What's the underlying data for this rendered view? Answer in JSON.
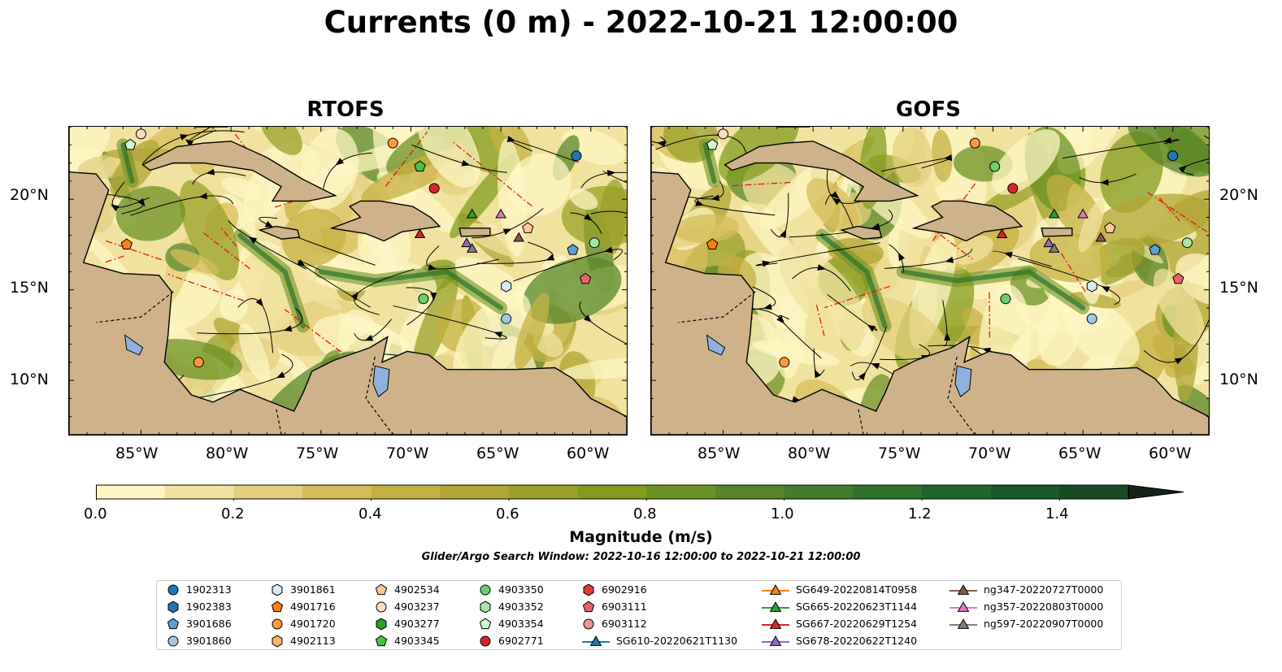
{
  "title": "Currents (0 m) - 2022-10-21 12:00:00",
  "panels": [
    {
      "title": "RTOFS"
    },
    {
      "title": "GOFS"
    }
  ],
  "axes": {
    "lon_ticks": [
      "85°W",
      "80°W",
      "75°W",
      "70°W",
      "65°W",
      "60°W"
    ],
    "lat_ticks": [
      "20°N",
      "15°N",
      "10°N"
    ]
  },
  "colorbar": {
    "label": "Magnitude (m/s)",
    "ticks": [
      "0.0",
      "0.2",
      "0.4",
      "0.6",
      "0.8",
      "1.0",
      "1.2",
      "1.4"
    ],
    "range": [
      0,
      1.5
    ],
    "extend": "max",
    "colors": [
      "#fdf6c3",
      "#f1e2a0",
      "#e4cf7d",
      "#d7bd5b",
      "#c5b043",
      "#b1a636",
      "#9aa02a",
      "#839c1f",
      "#6c9224",
      "#588729",
      "#427d2b",
      "#2e722c",
      "#1f662d",
      "#19592a",
      "#184a25",
      "#193b21",
      "#192e1d",
      "#172117"
    ]
  },
  "search_window": "Glider/Argo Search Window: 2022-10-16 12:00:00 to 2022-10-21 12:00:00",
  "legend": {
    "columns": [
      [
        {
          "label": "1902313",
          "marker": "circle",
          "color": "#1f77b4"
        },
        {
          "label": "1902383",
          "marker": "hexagon",
          "color": "#1f77b4"
        },
        {
          "label": "3901686",
          "marker": "pentagon",
          "color": "#5aa0d8"
        },
        {
          "label": "3901860",
          "marker": "circle",
          "color": "#9ecae9"
        }
      ],
      [
        {
          "label": "3901861",
          "marker": "hexagon",
          "color": "#d6eaf8"
        },
        {
          "label": "4901716",
          "marker": "pentagon",
          "color": "#ff7f0e"
        },
        {
          "label": "4901720",
          "marker": "circle",
          "color": "#ff9a3c"
        },
        {
          "label": "4902113",
          "marker": "hexagon",
          "color": "#ffb36b"
        }
      ],
      [
        {
          "label": "4902534",
          "marker": "pentagon",
          "color": "#ffc896"
        },
        {
          "label": "4903237",
          "marker": "circle",
          "color": "#ffdcc0"
        },
        {
          "label": "4903277",
          "marker": "hexagon",
          "color": "#2ca02c"
        },
        {
          "label": "4903345",
          "marker": "pentagon",
          "color": "#4dbf4d"
        }
      ],
      [
        {
          "label": "4903350",
          "marker": "circle",
          "color": "#6ccf6c"
        },
        {
          "label": "4903352",
          "marker": "hexagon",
          "color": "#a5e6a5"
        },
        {
          "label": "4903354",
          "marker": "pentagon",
          "color": "#d3f5d3"
        },
        {
          "label": "6902771",
          "marker": "circle",
          "color": "#d62728"
        }
      ],
      [
        {
          "label": "6902916",
          "marker": "hexagon",
          "color": "#e0393a"
        },
        {
          "label": "6903111",
          "marker": "pentagon",
          "color": "#e8636a"
        },
        {
          "label": "6903112",
          "marker": "circle",
          "color": "#f09090"
        },
        {
          "label": "SG610-20220621T1130",
          "marker": "triangle-line",
          "color": "#1f77b4"
        }
      ],
      [
        {
          "label": "SG649-20220814T0958",
          "marker": "triangle-line",
          "color": "#ff7f0e"
        },
        {
          "label": "SG665-20220623T1144",
          "marker": "triangle-line",
          "color": "#2ca02c"
        },
        {
          "label": "SG667-20220629T1254",
          "marker": "triangle-line",
          "color": "#d62728"
        },
        {
          "label": "SG678-20220622T1240",
          "marker": "triangle-line",
          "color": "#9467bd"
        }
      ],
      [
        {
          "label": "ng347-20220727T0000",
          "marker": "triangle-line",
          "color": "#8c564b"
        },
        {
          "label": "ng357-20220803T0000",
          "marker": "triangle-line",
          "color": "#e377c2"
        },
        {
          "label": "ng597-20220907T0000",
          "marker": "triangle-line",
          "color": "#7f7f7f"
        }
      ]
    ]
  },
  "map_extent": {
    "lon": [
      -89,
      -58
    ],
    "lat": [
      7,
      24
    ]
  },
  "markers": {
    "rtofs": [
      {
        "lon": -85.0,
        "lat": 23.6,
        "marker": "circle",
        "color": "#ffdcc0"
      },
      {
        "lon": -85.6,
        "lat": 23.0,
        "marker": "pentagon",
        "color": "#d3f5d3"
      },
      {
        "lon": -71.0,
        "lat": 23.1,
        "marker": "circle",
        "color": "#ff9a3c"
      },
      {
        "lon": -69.5,
        "lat": 21.8,
        "marker": "pentagon",
        "color": "#4dbf4d"
      },
      {
        "lon": -68.7,
        "lat": 20.6,
        "marker": "circle",
        "color": "#d62728"
      },
      {
        "lon": -60.8,
        "lat": 22.4,
        "marker": "circle",
        "color": "#1f77b4"
      },
      {
        "lon": -85.8,
        "lat": 17.5,
        "marker": "pentagon",
        "color": "#ff7f0e"
      },
      {
        "lon": -81.8,
        "lat": 11.0,
        "marker": "circle",
        "color": "#ff9a3c"
      },
      {
        "lon": -69.3,
        "lat": 14.5,
        "marker": "circle",
        "color": "#6ccf6c"
      },
      {
        "lon": -64.7,
        "lat": 15.2,
        "marker": "hexagon",
        "color": "#d6eaf8"
      },
      {
        "lon": -64.7,
        "lat": 13.4,
        "marker": "circle",
        "color": "#9ecae9"
      },
      {
        "lon": -61.0,
        "lat": 17.2,
        "marker": "pentagon",
        "color": "#5aa0d8"
      },
      {
        "lon": -59.8,
        "lat": 17.6,
        "marker": "circle",
        "color": "#a5e6a5"
      },
      {
        "lon": -60.3,
        "lat": 15.6,
        "marker": "pentagon",
        "color": "#e8636a"
      },
      {
        "lon": -63.5,
        "lat": 18.4,
        "marker": "pentagon",
        "color": "#ffc896"
      },
      {
        "lon": -66.6,
        "lat": 19.2,
        "marker": "triangle",
        "color": "#2ca02c"
      },
      {
        "lon": -65.0,
        "lat": 19.2,
        "marker": "triangle",
        "color": "#e377c2"
      },
      {
        "lon": -69.5,
        "lat": 18.1,
        "marker": "triangle",
        "color": "#d62728"
      },
      {
        "lon": -66.9,
        "lat": 17.6,
        "marker": "triangle",
        "color": "#9467bd"
      },
      {
        "lon": -66.6,
        "lat": 17.3,
        "marker": "triangle",
        "color": "#7f7f7f"
      },
      {
        "lon": -64.0,
        "lat": 17.9,
        "marker": "triangle",
        "color": "#8c564b"
      }
    ],
    "gofs": [
      {
        "lon": -85.0,
        "lat": 23.6,
        "marker": "circle",
        "color": "#ffdcc0"
      },
      {
        "lon": -85.6,
        "lat": 23.0,
        "marker": "pentagon",
        "color": "#d3f5d3"
      },
      {
        "lon": -71.0,
        "lat": 23.1,
        "marker": "circle",
        "color": "#ff9a3c"
      },
      {
        "lon": -69.9,
        "lat": 21.8,
        "marker": "circle",
        "color": "#6ccf6c"
      },
      {
        "lon": -68.9,
        "lat": 20.6,
        "marker": "circle",
        "color": "#d62728"
      },
      {
        "lon": -60.0,
        "lat": 22.4,
        "marker": "circle",
        "color": "#1f77b4"
      },
      {
        "lon": -85.6,
        "lat": 17.5,
        "marker": "pentagon",
        "color": "#ff7f0e"
      },
      {
        "lon": -81.6,
        "lat": 11.0,
        "marker": "circle",
        "color": "#ff9a3c"
      },
      {
        "lon": -69.3,
        "lat": 14.5,
        "marker": "circle",
        "color": "#6ccf6c"
      },
      {
        "lon": -64.5,
        "lat": 15.2,
        "marker": "hexagon",
        "color": "#d6eaf8"
      },
      {
        "lon": -64.5,
        "lat": 13.4,
        "marker": "circle",
        "color": "#9ecae9"
      },
      {
        "lon": -61.0,
        "lat": 17.2,
        "marker": "pentagon",
        "color": "#5aa0d8"
      },
      {
        "lon": -59.2,
        "lat": 17.6,
        "marker": "circle",
        "color": "#a5e6a5"
      },
      {
        "lon": -59.7,
        "lat": 15.6,
        "marker": "pentagon",
        "color": "#e8636a"
      },
      {
        "lon": -63.5,
        "lat": 18.4,
        "marker": "pentagon",
        "color": "#ffc896"
      },
      {
        "lon": -66.6,
        "lat": 19.2,
        "marker": "triangle",
        "color": "#2ca02c"
      },
      {
        "lon": -65.0,
        "lat": 19.2,
        "marker": "triangle",
        "color": "#e377c2"
      },
      {
        "lon": -69.5,
        "lat": 18.1,
        "marker": "triangle",
        "color": "#d62728"
      },
      {
        "lon": -66.9,
        "lat": 17.6,
        "marker": "triangle",
        "color": "#9467bd"
      },
      {
        "lon": -66.6,
        "lat": 17.3,
        "marker": "triangle",
        "color": "#7f7f7f"
      },
      {
        "lon": -64.0,
        "lat": 17.9,
        "marker": "triangle",
        "color": "#8c564b"
      }
    ]
  },
  "land_color": "#cfb289",
  "lake_color": "#8fb1dd"
}
